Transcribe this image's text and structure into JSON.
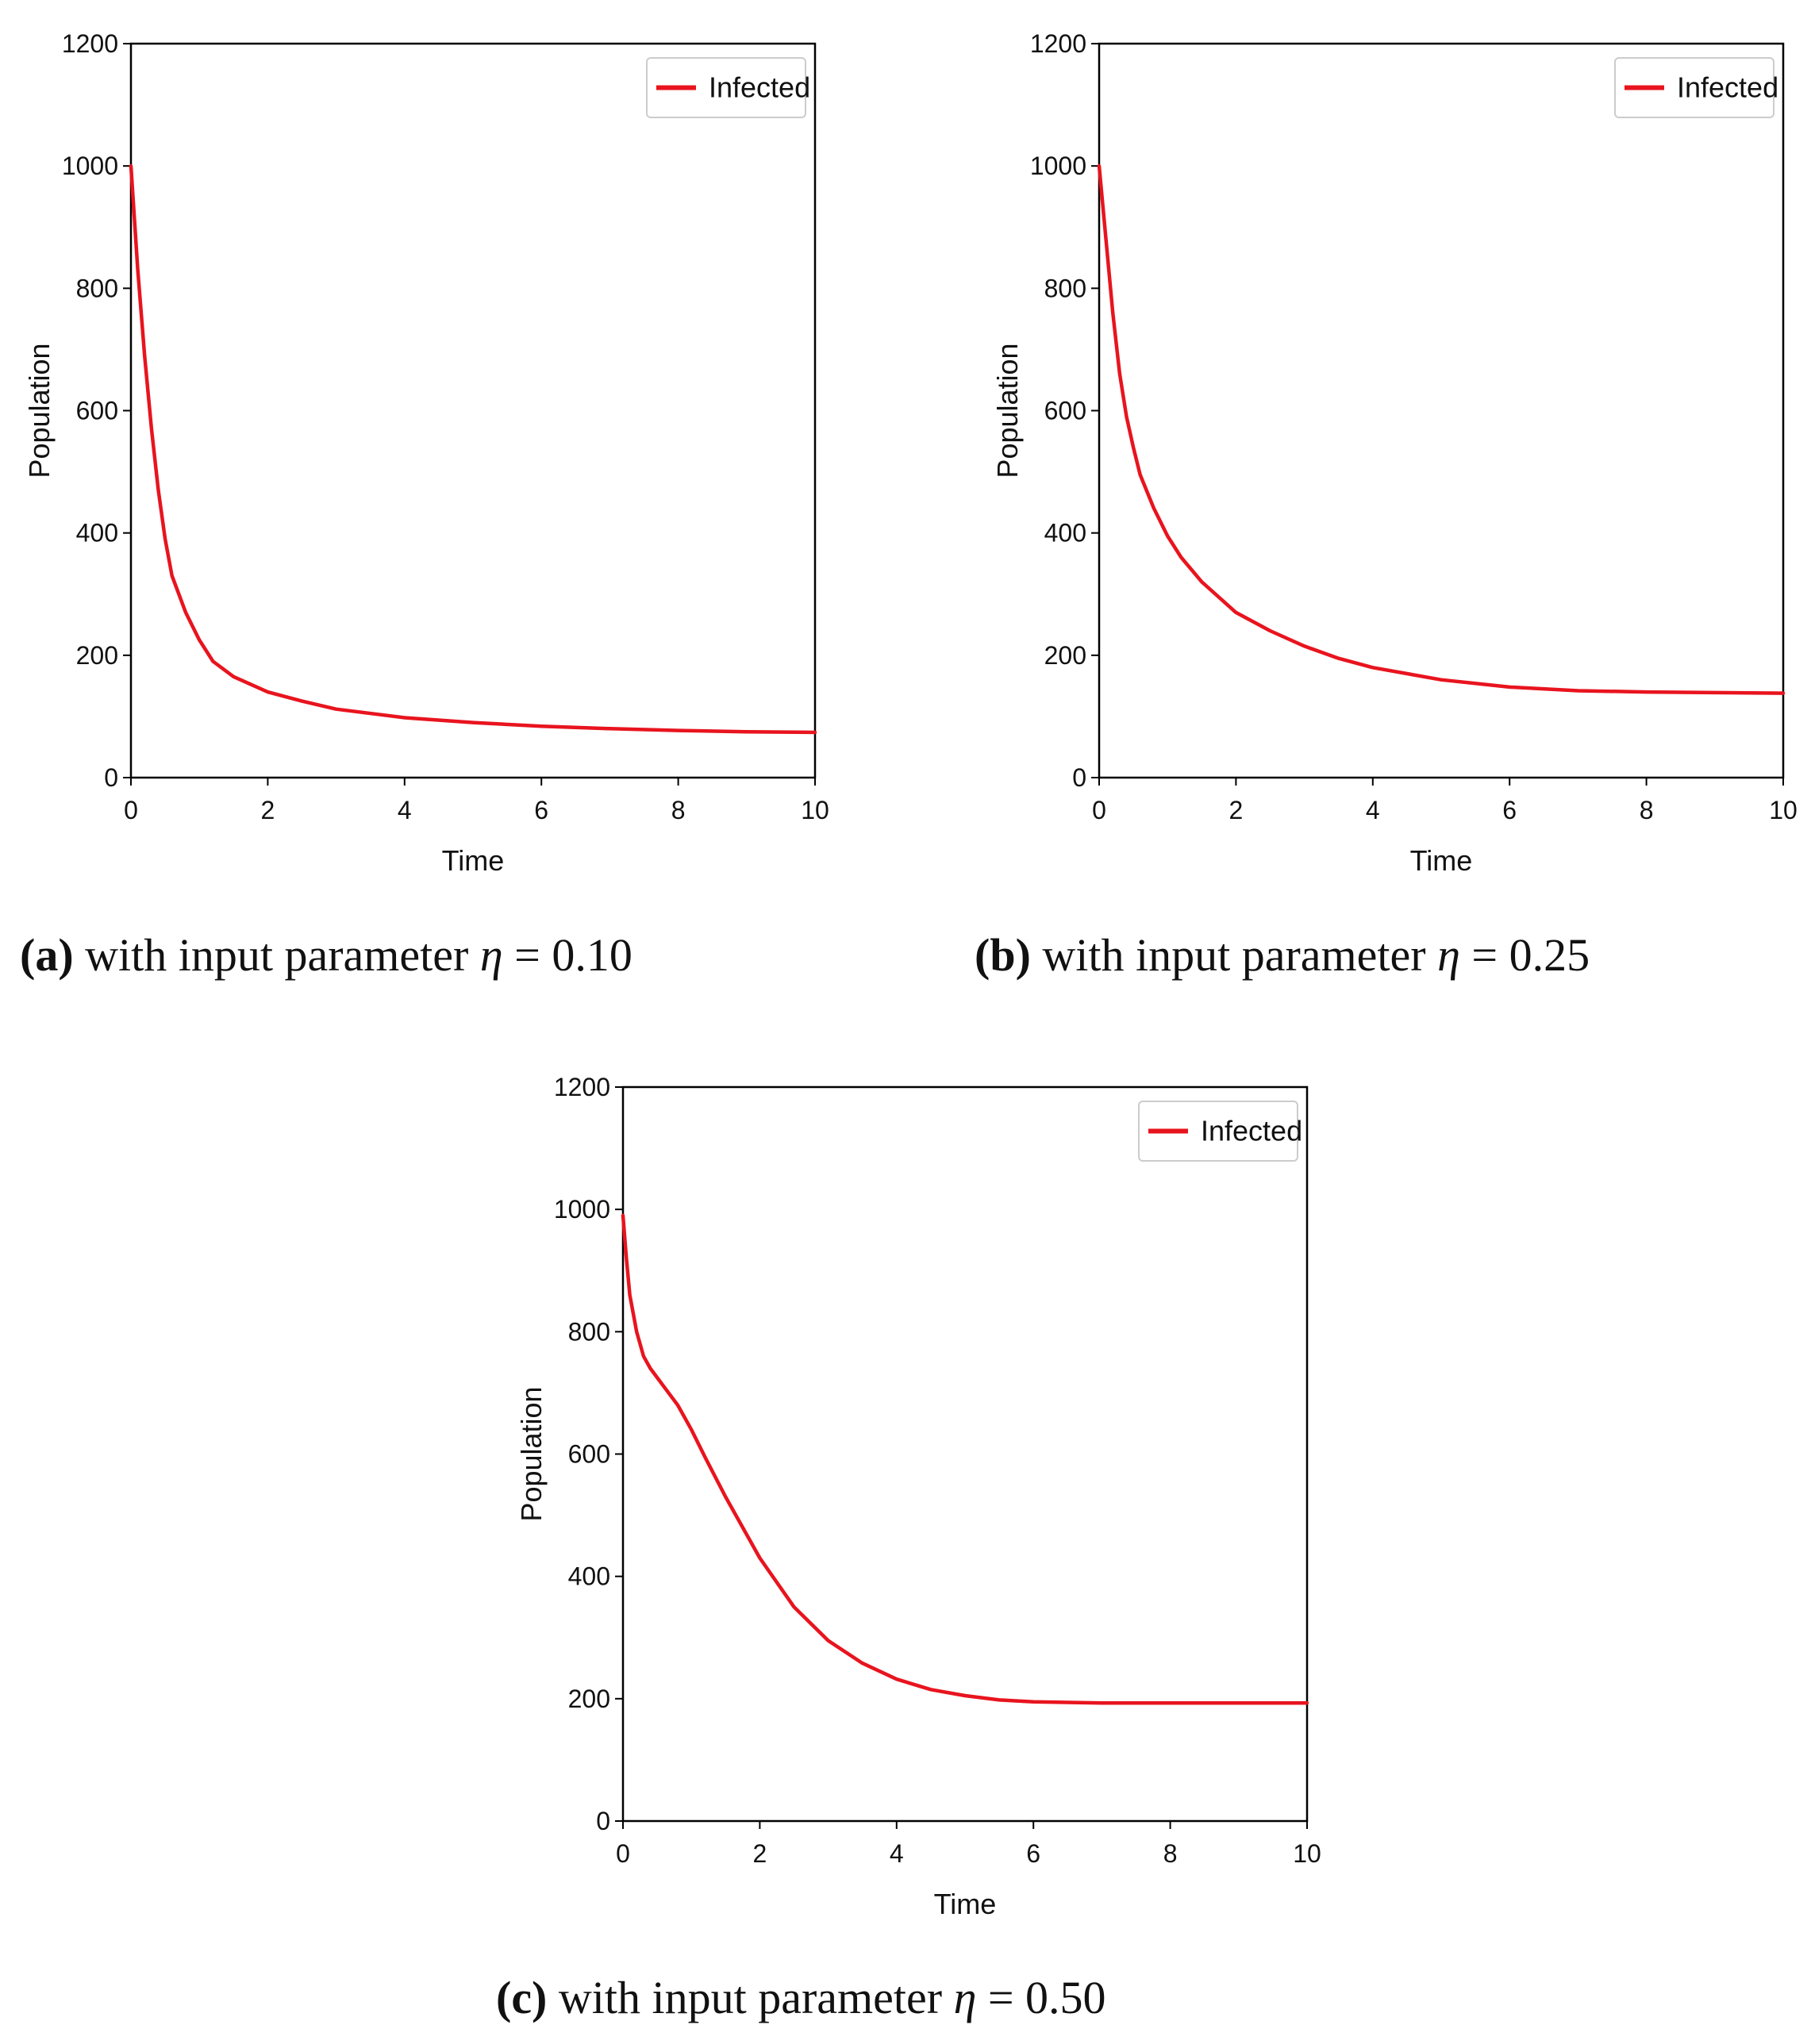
{
  "chart_data": [
    {
      "type": "line",
      "xlabel": "Time",
      "ylabel": "Population",
      "xlim": [
        0,
        10
      ],
      "ylim": [
        0,
        1200
      ],
      "xticks": [
        "0",
        "2",
        "4",
        "6",
        "8",
        "10"
      ],
      "yticks": [
        "0",
        "200",
        "400",
        "600",
        "800",
        "1000",
        "1200"
      ],
      "legend_position": "top-right",
      "grid": false,
      "series": [
        {
          "name": "Infected",
          "color": "#e8141e",
          "x": [
            0,
            0.1,
            0.2,
            0.3,
            0.4,
            0.5,
            0.6,
            0.8,
            1.0,
            1.2,
            1.5,
            2.0,
            2.5,
            3.0,
            4.0,
            5.0,
            6.0,
            7.0,
            8.0,
            9.0,
            10.0
          ],
          "y": [
            1000,
            830,
            690,
            570,
            470,
            390,
            330,
            270,
            225,
            190,
            165,
            140,
            125,
            112,
            98,
            90,
            84,
            80,
            77,
            75,
            74
          ]
        }
      ],
      "caption": {
        "letter": "(a)",
        "text": "with input parameter",
        "symbol": "η",
        "value": "= 0.10"
      }
    },
    {
      "type": "line",
      "xlabel": "Time",
      "ylabel": "Population",
      "xlim": [
        0,
        10
      ],
      "ylim": [
        0,
        1200
      ],
      "xticks": [
        "0",
        "2",
        "4",
        "6",
        "8",
        "10"
      ],
      "yticks": [
        "0",
        "200",
        "400",
        "600",
        "800",
        "1000",
        "1200"
      ],
      "legend_position": "top-right",
      "grid": false,
      "series": [
        {
          "name": "Infected",
          "color": "#e8141e",
          "x": [
            0,
            0.1,
            0.2,
            0.3,
            0.4,
            0.5,
            0.6,
            0.8,
            1.0,
            1.2,
            1.5,
            2.0,
            2.5,
            3.0,
            3.5,
            4.0,
            5.0,
            6.0,
            7.0,
            8.0,
            9.0,
            10.0
          ],
          "y": [
            1000,
            880,
            760,
            660,
            590,
            540,
            495,
            440,
            395,
            360,
            320,
            270,
            240,
            215,
            195,
            180,
            160,
            148,
            142,
            140,
            139,
            138
          ]
        }
      ],
      "caption": {
        "letter": "(b)",
        "text": "with input parameter",
        "symbol": "η",
        "value": "= 0.25"
      }
    },
    {
      "type": "line",
      "xlabel": "Time",
      "ylabel": "Population",
      "xlim": [
        0,
        10
      ],
      "ylim": [
        0,
        1200
      ],
      "xticks": [
        "0",
        "2",
        "4",
        "6",
        "8",
        "10"
      ],
      "yticks": [
        "0",
        "200",
        "400",
        "600",
        "800",
        "1000",
        "1200"
      ],
      "legend_position": "top-right",
      "grid": false,
      "series": [
        {
          "name": "Infected",
          "color": "#e8141e",
          "x": [
            0,
            0.05,
            0.1,
            0.2,
            0.3,
            0.4,
            0.6,
            0.8,
            1.0,
            1.2,
            1.5,
            2.0,
            2.5,
            3.0,
            3.5,
            4.0,
            4.5,
            5.0,
            5.5,
            6.0,
            7.0,
            8.0,
            9.0,
            10.0
          ],
          "y": [
            990,
            920,
            860,
            800,
            760,
            740,
            710,
            680,
            640,
            595,
            530,
            430,
            350,
            295,
            258,
            232,
            215,
            205,
            198,
            195,
            193,
            193,
            193,
            193
          ]
        }
      ],
      "caption": {
        "letter": "(c)",
        "text": "with input parameter",
        "symbol": "η",
        "value": "= 0.50"
      }
    }
  ]
}
